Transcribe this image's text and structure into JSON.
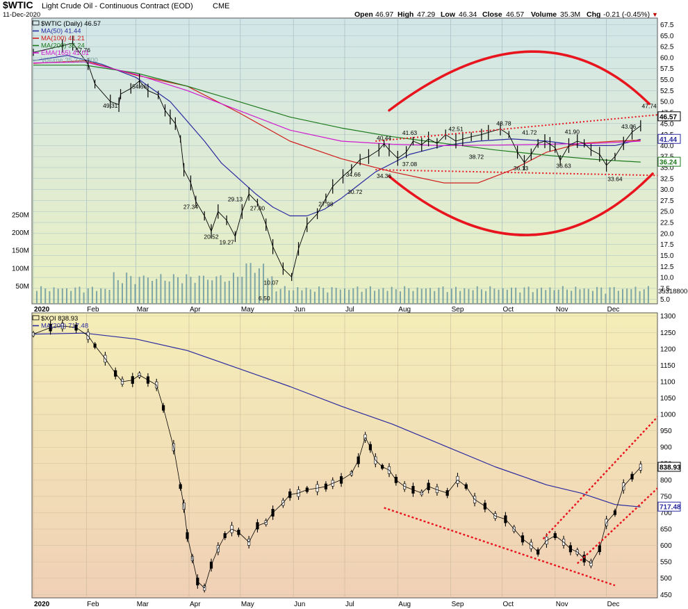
{
  "header": {
    "symbol": "$WTIC",
    "name": "Light Crude Oil - Continuous Contract (EOD)",
    "exchange": "CME",
    "date": "11-Dec-2020",
    "open_label": "Open",
    "open": "46.97",
    "high_label": "High",
    "high": "47.29",
    "low_label": "Low",
    "low": "46.34",
    "close_label": "Close",
    "close": "46.57",
    "volume_label": "Volume",
    "volume": "35.3M",
    "chg_label": "Chg",
    "chg": "-0.21 (-0.45%)",
    "chg_arrow": "▼"
  },
  "colors": {
    "ma50": "#2a2aa0",
    "ma100": "#d11c1c",
    "ma200": "#1c7a1c",
    "ema165": "#d01ad0",
    "volume": "#7fa6a6",
    "annotation": "#e8141e",
    "top_bg_top": "#d2e6e8",
    "top_bg_bottom": "#eaf0c2",
    "bottom_bg_top": "#f4eeb8",
    "bottom_bg_bottom": "#f0d0b6"
  },
  "chart_data": [
    {
      "type": "line",
      "title": "$WTIC Light Crude Oil - Continuous Contract (EOD) CME",
      "legend": [
        {
          "name": "$WTIC (Daily) 46.57",
          "color": "#000000"
        },
        {
          "name": "MA(50) 41.44",
          "color": "#2a2aa0"
        },
        {
          "name": "MA(100) 41.21",
          "color": "#d11c1c"
        },
        {
          "name": "MA(200) 36.24",
          "color": "#1c7a1c"
        },
        {
          "name": "EMA(165) 41.01",
          "color": "#d01ad0"
        },
        {
          "name": "Volume 35,318,800",
          "color": "#7fa6a6"
        }
      ],
      "legend_placement": "top-left",
      "x_ticks": [
        "2020",
        "Feb",
        "Mar",
        "Apr",
        "May",
        "Jun",
        "Jul",
        "Aug",
        "Sep",
        "Oct",
        "Nov",
        "Dec"
      ],
      "y_ticks": [
        "5.0",
        "7.5",
        "10.0",
        "12.5",
        "15.0",
        "17.5",
        "20.0",
        "22.5",
        "25.0",
        "27.5",
        "30.0",
        "32.5",
        "35.0",
        "37.5",
        "40.0",
        "42.5",
        "45.0",
        "47.5",
        "50.0",
        "52.5",
        "55.0",
        "57.5",
        "60.0",
        "62.5",
        "65.0",
        "67.5"
      ],
      "ylim": [
        4.0,
        69.0
      ],
      "volume_ticks": [
        "50M",
        "100M",
        "150M",
        "200M",
        "250M"
      ],
      "last_labels": {
        "price": "46.57",
        "ma50": "41.44",
        "ma200": "36.24",
        "volume": "35318800"
      },
      "series": [
        {
          "name": "price",
          "x": [
            0,
            17,
            23,
            32,
            36,
            45,
            50,
            51,
            57,
            62,
            67,
            73,
            77,
            80,
            83,
            86,
            88,
            92,
            95,
            100,
            104,
            108,
            113,
            118,
            122,
            126,
            131,
            136,
            140,
            146,
            151,
            155,
            160,
            166,
            171,
            175,
            181,
            186,
            191,
            196,
            202,
            205,
            208,
            213,
            218,
            222,
            227,
            231,
            236,
            241,
            247,
            251,
            256,
            262,
            266,
            273,
            278,
            283,
            287,
            291,
            295,
            299,
            302,
            305,
            308,
            313,
            318,
            322,
            326,
            331,
            335,
            340,
            345,
            350,
            355
          ],
          "y": [
            61.2,
            62.7,
            63.3,
            58.5,
            54.0,
            50.0,
            49.3,
            51.7,
            53.0,
            54.7,
            52.5,
            51.5,
            48.0,
            46.5,
            45.0,
            41.5,
            34.5,
            31.5,
            27.3,
            24.0,
            20.5,
            25.0,
            23.0,
            19.3,
            25.0,
            29.0,
            27.0,
            22.0,
            17.0,
            12.0,
            10.1,
            16.5,
            22.0,
            24.5,
            27.98,
            30.7,
            33.0,
            34.7,
            36.8,
            37.5,
            39.0,
            40.44,
            39.0,
            37.1,
            38.5,
            41.0,
            40.2,
            41.5,
            40.5,
            42.5,
            41.0,
            41.5,
            42.0,
            42.5,
            43.0,
            43.78,
            42.5,
            38.5,
            36.13,
            38.0,
            40.5,
            41.0,
            40.3,
            39.5,
            36.63,
            40.0,
            41.0,
            40.5,
            39.0,
            38.0,
            35.5,
            37.5,
            40.5,
            43.06,
            44.5
          ]
        },
        {
          "name": "MA(50)",
          "x": [
            0,
            20,
            40,
            60,
            80,
            100,
            110,
            120,
            130,
            140,
            150,
            160,
            170,
            180,
            200,
            220,
            240,
            260,
            280,
            300,
            320,
            340,
            355
          ],
          "y": [
            59.3,
            60.5,
            58.5,
            55.5,
            50.0,
            41.0,
            36.0,
            32.5,
            29.0,
            26.0,
            24.0,
            24.0,
            25.5,
            28.0,
            34.0,
            38.0,
            40.0,
            41.0,
            41.5,
            41.0,
            40.0,
            40.0,
            41.44
          ]
        },
        {
          "name": "MA(100)",
          "x": [
            0,
            30,
            60,
            90,
            120,
            150,
            180,
            210,
            240,
            260,
            280,
            300,
            320,
            340,
            355
          ],
          "y": [
            58.7,
            59.3,
            56.0,
            53.5,
            47.5,
            41.0,
            37.0,
            34.0,
            31.5,
            31.5,
            34.5,
            38.5,
            40.5,
            41.0,
            41.21
          ]
        },
        {
          "name": "MA(200)",
          "x": [
            0,
            30,
            60,
            90,
            120,
            150,
            180,
            210,
            240,
            270,
            300,
            330,
            355
          ],
          "y": [
            58.3,
            58.3,
            56.5,
            53.5,
            50.0,
            46.5,
            44.0,
            42.0,
            40.5,
            39.0,
            37.8,
            36.8,
            36.24
          ]
        },
        {
          "name": "EMA(165)",
          "x": [
            0,
            30,
            60,
            90,
            120,
            150,
            180,
            210,
            240,
            270,
            300,
            330,
            355
          ],
          "y": [
            58.8,
            59.0,
            56.2,
            52.5,
            48.0,
            43.5,
            41.0,
            40.3,
            40.0,
            40.1,
            40.3,
            40.5,
            41.01
          ]
        }
      ],
      "price_labels": [
        {
          "x": 29,
          "y": 63.0,
          "text": "57.76"
        },
        {
          "x": 62,
          "y": 54.7,
          "text": "54.66"
        },
        {
          "x": 45,
          "y": 50.3,
          "text": "49.31"
        },
        {
          "x": 118,
          "y": 29.1,
          "text": "29.13"
        },
        {
          "x": 131,
          "y": 27.0,
          "text": "27.00"
        },
        {
          "x": 92,
          "y": 27.3,
          "text": "27.34"
        },
        {
          "x": 104,
          "y": 20.5,
          "text": "20.52"
        },
        {
          "x": 113,
          "y": 19.3,
          "text": "19.27"
        },
        {
          "x": 139,
          "y": 10.07,
          "text": "10.07"
        },
        {
          "x": 135,
          "y": 6.5,
          "text": "6.50"
        },
        {
          "x": 171,
          "y": 27.98,
          "text": "27.98"
        },
        {
          "x": 187,
          "y": 34.66,
          "text": "34.66"
        },
        {
          "x": 188,
          "y": 30.72,
          "text": "30.72"
        },
        {
          "x": 205,
          "y": 40.44,
          "text": "40.44"
        },
        {
          "x": 205,
          "y": 34.36,
          "text": "34.36"
        },
        {
          "x": 220,
          "y": 41.63,
          "text": "41.63"
        },
        {
          "x": 220,
          "y": 37.08,
          "text": "37.08"
        },
        {
          "x": 247,
          "y": 42.51,
          "text": "42.51"
        },
        {
          "x": 259,
          "y": 38.72,
          "text": "38.72"
        },
        {
          "x": 275,
          "y": 43.78,
          "text": "43.78"
        },
        {
          "x": 285,
          "y": 36.13,
          "text": "36.13"
        },
        {
          "x": 290,
          "y": 41.72,
          "text": "41.72"
        },
        {
          "x": 310,
          "y": 36.63,
          "text": "36.63"
        },
        {
          "x": 315,
          "y": 41.9,
          "text": "41.90"
        },
        {
          "x": 340,
          "y": 33.64,
          "text": "33.64"
        },
        {
          "x": 348,
          "y": 43.06,
          "text": "43.06"
        },
        {
          "x": 360,
          "y": 47.74,
          "text": "47.74"
        }
      ],
      "annotations": [
        {
          "type": "upper-arc",
          "color": "#e8141e"
        },
        {
          "type": "lower-arc",
          "color": "#e8141e"
        },
        {
          "type": "dotted-trendline-upper",
          "from": [
            200,
            41.0
          ],
          "to": [
            365,
            47.0
          ]
        },
        {
          "type": "dotted-trendline-lower",
          "from": [
            200,
            34.5
          ],
          "to": [
            365,
            33.2
          ]
        }
      ]
    },
    {
      "type": "line",
      "title": "$XOI",
      "legend": [
        {
          "name": "$XOI 838.93",
          "color": "#000000"
        },
        {
          "name": "MA(200) 717.48",
          "color": "#2a2aa0"
        }
      ],
      "legend_placement": "top-left",
      "x_ticks": [
        "2020",
        "Feb",
        "Mar",
        "Apr",
        "May",
        "Jun",
        "Jul",
        "Aug",
        "Sep",
        "Oct",
        "Nov",
        "Dec"
      ],
      "y_ticks": [
        "450",
        "500",
        "550",
        "600",
        "650",
        "700",
        "750",
        "800",
        "850",
        "900",
        "950",
        "1000",
        "1050",
        "1100",
        "1150",
        "1200",
        "1250",
        "1300"
      ],
      "ylim": [
        440,
        1310
      ],
      "last_labels": {
        "price": "838.93",
        "ma200": "717.48"
      },
      "series": [
        {
          "name": "price",
          "x": [
            0,
            10,
            17,
            25,
            32,
            36,
            42,
            48,
            52,
            58,
            62,
            67,
            72,
            76,
            82,
            86,
            88,
            90,
            93,
            96,
            100,
            104,
            108,
            112,
            116,
            120,
            126,
            131,
            136,
            140,
            146,
            150,
            155,
            160,
            166,
            171,
            175,
            180,
            186,
            190,
            194,
            197,
            200,
            204,
            208,
            212,
            217,
            222,
            227,
            231,
            236,
            242,
            248,
            253,
            258,
            264,
            270,
            276,
            281,
            286,
            291,
            295,
            300,
            305,
            310,
            314,
            318,
            322,
            326,
            331,
            335,
            340,
            345,
            350,
            355
          ],
          "y": [
            1245,
            1265,
            1270,
            1265,
            1240,
            1210,
            1170,
            1125,
            1100,
            1105,
            1120,
            1105,
            1090,
            1020,
            900,
            780,
            720,
            630,
            560,
            490,
            470,
            540,
            590,
            630,
            650,
            640,
            610,
            660,
            670,
            700,
            730,
            755,
            760,
            770,
            775,
            780,
            790,
            800,
            820,
            860,
            930,
            900,
            860,
            840,
            830,
            800,
            780,
            770,
            760,
            780,
            770,
            760,
            800,
            780,
            740,
            720,
            690,
            680,
            650,
            620,
            600,
            580,
            615,
            630,
            610,
            590,
            580,
            560,
            545,
            590,
            670,
            700,
            780,
            810,
            838.93
          ]
        },
        {
          "name": "MA(200)",
          "x": [
            0,
            30,
            60,
            90,
            120,
            150,
            180,
            210,
            240,
            270,
            300,
            320,
            340,
            355
          ],
          "y": [
            1245,
            1248,
            1230,
            1195,
            1140,
            1085,
            1025,
            970,
            905,
            840,
            785,
            760,
            725,
            717.48
          ]
        }
      ],
      "annotations": [
        {
          "type": "dotted-downtrend",
          "from": [
            205,
            715
          ],
          "to": [
            340,
            478
          ]
        },
        {
          "type": "dotted-channel-upper",
          "from": [
            298,
            620
          ],
          "to": [
            368,
            1010
          ]
        },
        {
          "type": "dotted-channel-lower",
          "from": [
            318,
            545
          ],
          "to": [
            368,
            790
          ]
        }
      ]
    }
  ]
}
